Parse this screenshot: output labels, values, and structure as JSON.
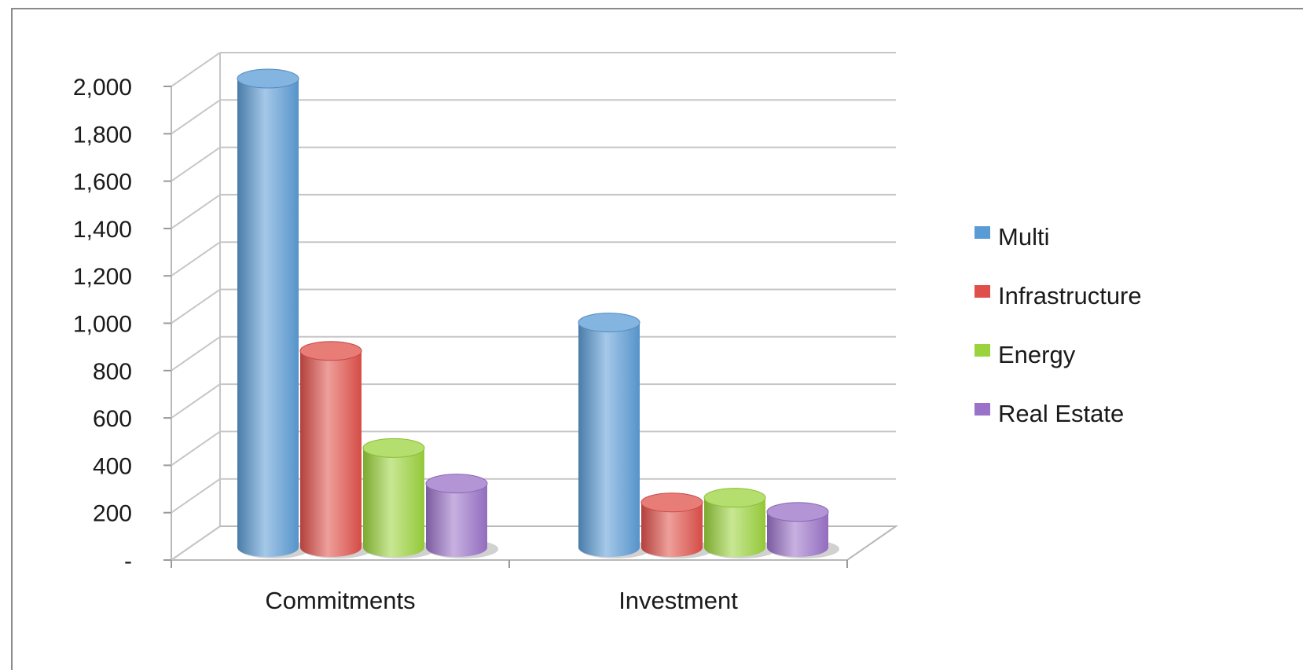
{
  "chart_data": {
    "type": "bar",
    "style": "3d-cylinder-clustered",
    "title": "",
    "xlabel": "",
    "ylabel": "",
    "categories": [
      "Commitments",
      "Investment"
    ],
    "series": [
      {
        "name": "Multi",
        "values": [
          1980,
          950
        ],
        "color": "#5b9bd5"
      },
      {
        "name": "Infrastructure",
        "values": [
          830,
          190
        ],
        "color": "#e0504a"
      },
      {
        "name": "Energy",
        "values": [
          420,
          210
        ],
        "color": "#9bd33c"
      },
      {
        "name": "Real Estate",
        "values": [
          270,
          150
        ],
        "color": "#9a72c8"
      }
    ],
    "ylim": [
      0,
      2000
    ],
    "yticks": [
      0,
      200,
      400,
      600,
      800,
      1000,
      1200,
      1400,
      1600,
      1800,
      2000
    ],
    "ytick_labels": [
      "-",
      "200",
      "400",
      "600",
      "800",
      "1,000",
      "1,200",
      "1,400",
      "1,600",
      "1,800",
      "2,000"
    ],
    "grid": true,
    "legend_position": "right"
  }
}
